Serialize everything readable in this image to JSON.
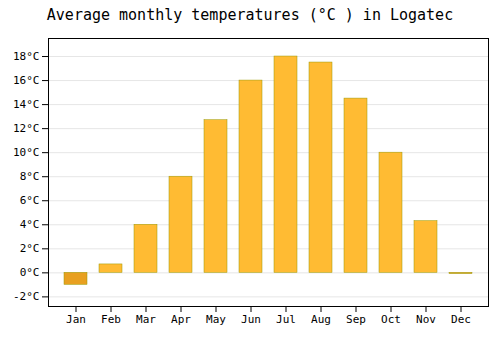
{
  "chart_data": {
    "type": "bar",
    "title": "Average monthly temperatures (°C ) in Logatec",
    "categories": [
      "Jan",
      "Feb",
      "Mar",
      "Apr",
      "May",
      "Jun",
      "Jul",
      "Aug",
      "Sep",
      "Oct",
      "Nov",
      "Dec"
    ],
    "values": [
      -1.0,
      0.7,
      4.0,
      8.0,
      12.7,
      16.0,
      18.0,
      17.5,
      14.5,
      10.0,
      4.3,
      -0.1
    ],
    "colors": [
      "#E8A020",
      "#FFBB33",
      "#FFBB33",
      "#FFBB33",
      "#FFBB33",
      "#FFBB33",
      "#FFBB33",
      "#FFBB33",
      "#FFBB33",
      "#FFBB33",
      "#FFBB33",
      "#E8A020"
    ],
    "ylim": [
      -2.8,
      19.5
    ],
    "yticks": [
      {
        "value": -2,
        "label": "-2°C"
      },
      {
        "value": 0,
        "label": "0°C"
      },
      {
        "value": 2,
        "label": "2°C"
      },
      {
        "value": 4,
        "label": "4°C"
      },
      {
        "value": 6,
        "label": "6°C"
      },
      {
        "value": 8,
        "label": "8°C"
      },
      {
        "value": 10,
        "label": "10°C"
      },
      {
        "value": 12,
        "label": "12°C"
      },
      {
        "value": 14,
        "label": "14°C"
      },
      {
        "value": 16,
        "label": "16°C"
      },
      {
        "value": 18,
        "label": "18°C"
      }
    ],
    "grid": true
  }
}
